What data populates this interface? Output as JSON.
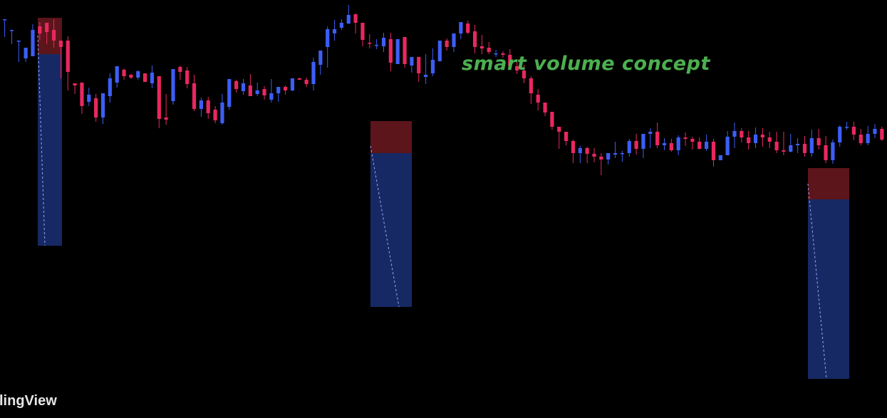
{
  "annotation": "smart volume concept",
  "watermark": "lingView",
  "colors": {
    "background": "#000000",
    "bull": "#3d5ef5",
    "bear": "#e8285f",
    "annotation": "#4caf50",
    "zone_top": "#7a1c24",
    "zone_bottom": "#1f3a8f"
  },
  "chart_data": {
    "type": "candlestick",
    "title": "",
    "xlabel": "",
    "ylabel": "",
    "ylim": [
      0,
      587
    ],
    "ohlc": [
      [
        560,
        560,
        545,
        535
      ],
      [
        545,
        545,
        530,
        525
      ],
      [
        530,
        530,
        505,
        500
      ],
      [
        505,
        520,
        505,
        500
      ],
      [
        508,
        545,
        553,
        515
      ],
      [
        550,
        540,
        556,
        530
      ],
      [
        555,
        542,
        552,
        525
      ],
      [
        545,
        530,
        560,
        520
      ],
      [
        530,
        521,
        530,
        477
      ],
      [
        530,
        486,
        536,
        460
      ],
      [
        470,
        467,
        470,
        455
      ],
      [
        471,
        438,
        471,
        427
      ],
      [
        444,
        454,
        464,
        438
      ],
      [
        449,
        422,
        455,
        416
      ],
      [
        422,
        456,
        456,
        413
      ],
      [
        452,
        477,
        484,
        443
      ],
      [
        471,
        494,
        494,
        464
      ],
      [
        489,
        480,
        491,
        475
      ],
      [
        482,
        478,
        483,
        476
      ],
      [
        478,
        487,
        488,
        475
      ],
      [
        484,
        472,
        481,
        474
      ],
      [
        470,
        485,
        495,
        463
      ],
      [
        480,
        420,
        480,
        407
      ],
      [
        422,
        419,
        455,
        412
      ],
      [
        445,
        490,
        490,
        440
      ],
      [
        493,
        486,
        495,
        475
      ],
      [
        488,
        469,
        493,
        463
      ],
      [
        470,
        434,
        482,
        431
      ],
      [
        434,
        446,
        450,
        423
      ],
      [
        446,
        428,
        451,
        420
      ],
      [
        433,
        418,
        438,
        414
      ],
      [
        414,
        443,
        455,
        412
      ],
      [
        437,
        476,
        476,
        433
      ],
      [
        473,
        462,
        475,
        457
      ],
      [
        459,
        470,
        476,
        454
      ],
      [
        467,
        452,
        483,
        452
      ],
      [
        455,
        460,
        471,
        452
      ],
      [
        462,
        453,
        466,
        447
      ],
      [
        447,
        456,
        476,
        443
      ],
      [
        456,
        465,
        465,
        444
      ],
      [
        465,
        460,
        467,
        454
      ],
      [
        460,
        477,
        474,
        459
      ],
      [
        477,
        475,
        478,
        475
      ],
      [
        475,
        469,
        478,
        465
      ],
      [
        469,
        500,
        506,
        460
      ],
      [
        496,
        516,
        516,
        482
      ],
      [
        521,
        546,
        550,
        492
      ],
      [
        540,
        546,
        559,
        530
      ],
      [
        548,
        555,
        560,
        545
      ],
      [
        554,
        566,
        580,
        553
      ],
      [
        567,
        555,
        568,
        540
      ],
      [
        555,
        531,
        543,
        522
      ],
      [
        527,
        526,
        539,
        519
      ],
      [
        524,
        524,
        532,
        518
      ],
      [
        522,
        534,
        541,
        514
      ],
      [
        532,
        499,
        541,
        487
      ],
      [
        497,
        532,
        532,
        497
      ],
      [
        535,
        497,
        534,
        492
      ],
      [
        495,
        507,
        502,
        485
      ],
      [
        507,
        484,
        507,
        472
      ],
      [
        479,
        482,
        511,
        469
      ],
      [
        484,
        503,
        519,
        480
      ],
      [
        501,
        530,
        528,
        501
      ],
      [
        530,
        521,
        533,
        516
      ],
      [
        521,
        540,
        524,
        514
      ],
      [
        540,
        556,
        548,
        532
      ],
      [
        554,
        541,
        558,
        539
      ],
      [
        543,
        521,
        552,
        512
      ],
      [
        522,
        519,
        538,
        511
      ],
      [
        520,
        514,
        528,
        511
      ],
      [
        512,
        512,
        517,
        507
      ],
      [
        512,
        510,
        515,
        506
      ],
      [
        510,
        494,
        518,
        491
      ],
      [
        494,
        488,
        501,
        483
      ],
      [
        488,
        477,
        496,
        470
      ],
      [
        477,
        456,
        480,
        441
      ],
      [
        454,
        443,
        462,
        432
      ],
      [
        443,
        429,
        443,
        424
      ],
      [
        430,
        409,
        430,
        405
      ],
      [
        409,
        402,
        409,
        378
      ],
      [
        402,
        389,
        402,
        383
      ],
      [
        389,
        372,
        391,
        358
      ],
      [
        372,
        379,
        382,
        358
      ],
      [
        379,
        371,
        381,
        358
      ],
      [
        371,
        367,
        379,
        359
      ],
      [
        367,
        363,
        372,
        341
      ],
      [
        363,
        372,
        369,
        356
      ],
      [
        370,
        372,
        388,
        365
      ],
      [
        372,
        372,
        375,
        360
      ],
      [
        372,
        389,
        392,
        367
      ],
      [
        389,
        378,
        399,
        370
      ],
      [
        378,
        399,
        399,
        365
      ],
      [
        399,
        402,
        407,
        379
      ],
      [
        402,
        383,
        415,
        379
      ],
      [
        383,
        386,
        393,
        376
      ],
      [
        386,
        376,
        392,
        374
      ],
      [
        376,
        394,
        397,
        369
      ],
      [
        394,
        392,
        401,
        382
      ],
      [
        392,
        388,
        395,
        377
      ],
      [
        388,
        378,
        394,
        377
      ],
      [
        378,
        388,
        398,
        375
      ],
      [
        388,
        362,
        392,
        353
      ],
      [
        362,
        369,
        366,
        362
      ],
      [
        369,
        395,
        403,
        369
      ],
      [
        395,
        403,
        415,
        379
      ],
      [
        403,
        394,
        407,
        387
      ],
      [
        394,
        386,
        403,
        377
      ],
      [
        386,
        398,
        408,
        379
      ],
      [
        398,
        394,
        407,
        381
      ],
      [
        394,
        388,
        402,
        379
      ],
      [
        388,
        376,
        402,
        372
      ],
      [
        376,
        374,
        402,
        369
      ],
      [
        374,
        383,
        399,
        373
      ],
      [
        383,
        385,
        393,
        372
      ],
      [
        385,
        372,
        396,
        367
      ],
      [
        372,
        393,
        405,
        367
      ],
      [
        393,
        383,
        406,
        377
      ],
      [
        383,
        362,
        396,
        358
      ],
      [
        362,
        387,
        391,
        357
      ],
      [
        387,
        409,
        411,
        381
      ],
      [
        409,
        409,
        416,
        405
      ],
      [
        409,
        398,
        416,
        390
      ],
      [
        398,
        386,
        406,
        383
      ],
      [
        386,
        399,
        410,
        383
      ],
      [
        399,
        406,
        413,
        393
      ],
      [
        406,
        391,
        409,
        389
      ]
    ]
  }
}
